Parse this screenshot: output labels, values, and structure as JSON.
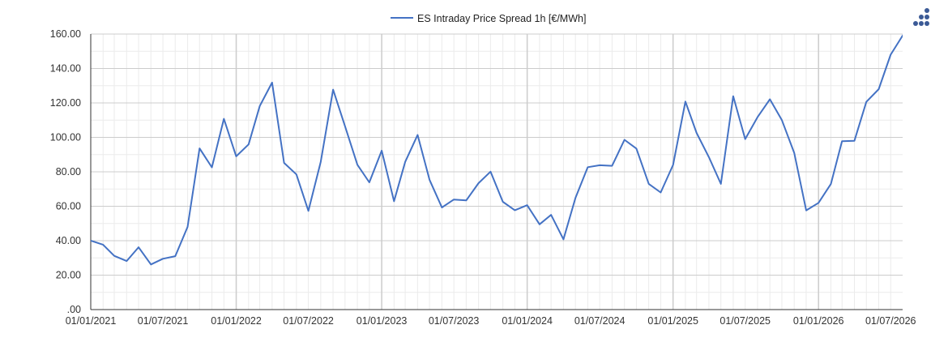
{
  "chart_data": {
    "type": "line",
    "title": "",
    "xlabel": "",
    "ylabel": "",
    "legend": {
      "position": "top",
      "entries": [
        "ES Intraday Price Spread 1h [€/MWh]"
      ]
    },
    "colors": {
      "series": "#4472c4",
      "major_grid": "#cccccc",
      "minor_grid": "#ebebeb",
      "axis": "#333333",
      "menu_icon": "#3b5a96"
    },
    "ylim": [
      0,
      160
    ],
    "xlim": [
      "2021-01-01",
      "2026-07-31"
    ],
    "grid": true,
    "y_ticks": [
      ".00",
      "20.00",
      "40.00",
      "60.00",
      "80.00",
      "100.00",
      "120.00",
      "140.00",
      "160.00"
    ],
    "x_ticks": [
      {
        "date": "2021-01-01",
        "label": "01/01/2021"
      },
      {
        "date": "2021-07-01",
        "label": "01/07/2021"
      },
      {
        "date": "2022-01-01",
        "label": "01/01/2022"
      },
      {
        "date": "2022-07-01",
        "label": "01/07/2022"
      },
      {
        "date": "2023-01-01",
        "label": "01/01/2023"
      },
      {
        "date": "2023-07-01",
        "label": "01/07/2023"
      },
      {
        "date": "2024-01-01",
        "label": "01/01/2024"
      },
      {
        "date": "2024-07-01",
        "label": "01/07/2024"
      },
      {
        "date": "2025-01-01",
        "label": "01/01/2025"
      },
      {
        "date": "2025-07-01",
        "label": "01/07/2025"
      },
      {
        "date": "2026-01-01",
        "label": "01/01/2026"
      },
      {
        "date": "2026-07-01",
        "label": "01/07/2026"
      }
    ],
    "series": [
      {
        "name": "ES Intraday Price Spread 1h [€/MWh]",
        "x": [
          "2021-01-01",
          "2021-02-01",
          "2021-03-01",
          "2021-04-01",
          "2021-05-01",
          "2021-06-01",
          "2021-07-01",
          "2021-08-01",
          "2021-09-01",
          "2021-10-01",
          "2021-11-01",
          "2021-12-01",
          "2022-01-01",
          "2022-02-01",
          "2022-03-01",
          "2022-04-01",
          "2022-05-01",
          "2022-06-01",
          "2022-07-01",
          "2022-08-01",
          "2022-09-01",
          "2022-10-01",
          "2022-11-01",
          "2022-12-01",
          "2023-01-01",
          "2023-02-01",
          "2023-03-01",
          "2023-04-01",
          "2023-05-01",
          "2023-06-01",
          "2023-07-01",
          "2023-08-01",
          "2023-09-01",
          "2023-10-01",
          "2023-11-01",
          "2023-12-01",
          "2024-01-01",
          "2024-02-01",
          "2024-03-01",
          "2024-04-01",
          "2024-05-01",
          "2024-06-01",
          "2024-07-01",
          "2024-08-01",
          "2024-09-01",
          "2024-10-01",
          "2024-11-01",
          "2024-12-01",
          "2025-01-01",
          "2025-02-01",
          "2025-03-01",
          "2025-04-01",
          "2025-05-01",
          "2025-06-01",
          "2025-07-01",
          "2025-08-01",
          "2025-09-01",
          "2025-10-01",
          "2025-11-01",
          "2025-12-01",
          "2026-01-01",
          "2026-02-01",
          "2026-03-01",
          "2026-04-01",
          "2026-05-01",
          "2026-06-01",
          "2026-07-01",
          "2026-08-01"
        ],
        "values": [
          40.0,
          37.7,
          31.2,
          28.2,
          36.2,
          26.2,
          29.5,
          31.0,
          48.0,
          93.6,
          82.6,
          110.8,
          89.0,
          95.9,
          118.2,
          131.8,
          85.2,
          78.5,
          57.3,
          85.7,
          127.7,
          106.5,
          84.1,
          73.9,
          92.3,
          62.9,
          85.8,
          101.4,
          75.4,
          59.3,
          63.9,
          63.4,
          73.4,
          80.1,
          62.6,
          57.7,
          60.6,
          49.5,
          55.0,
          40.8,
          64.8,
          82.7,
          83.8,
          83.5,
          98.6,
          93.5,
          73.0,
          68.0,
          84.0,
          120.8,
          102.6,
          88.5,
          73.0,
          123.9,
          99.0,
          111.7,
          122.1,
          110.0,
          91.0,
          57.6,
          62.0,
          73.0,
          97.8,
          98.0,
          120.6,
          128.0,
          148.0,
          159.5
        ]
      }
    ]
  },
  "menu_icon": {
    "name": "chart-menu-icon"
  }
}
